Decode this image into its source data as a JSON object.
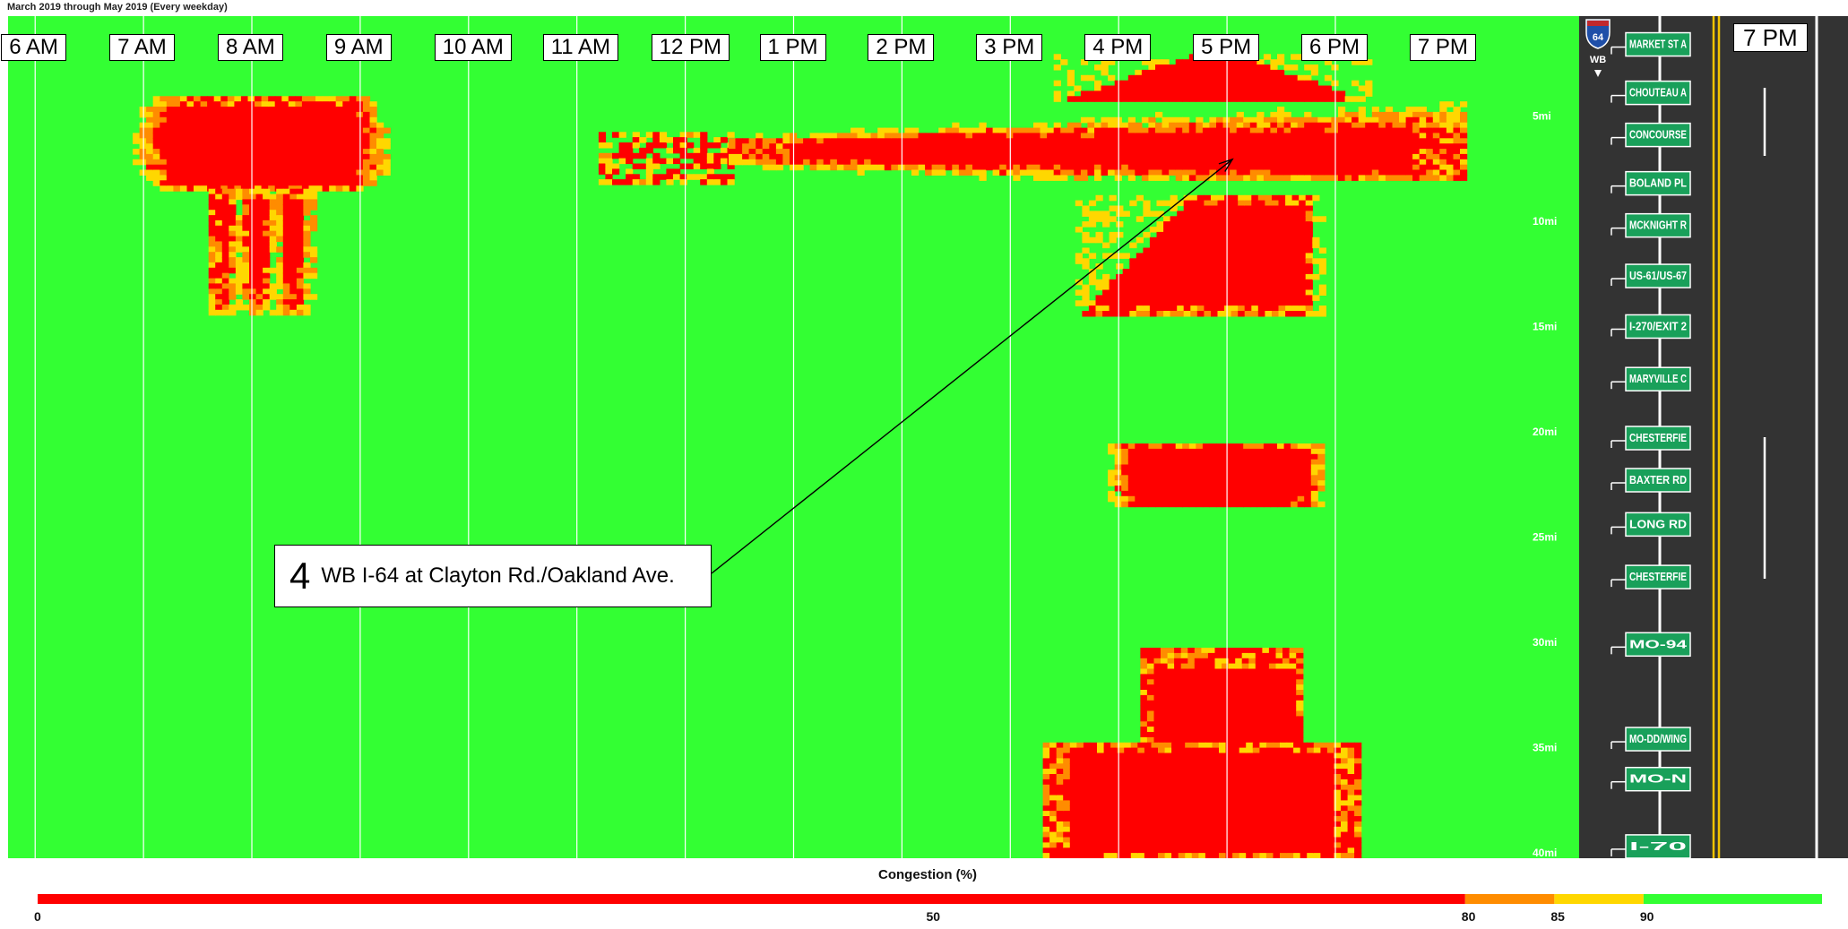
{
  "header": {
    "title": "March 2019 through May 2019 (Every weekday)"
  },
  "chart_data": {
    "type": "heatmap",
    "title": "March 2019 through May 2019 (Every weekday)",
    "x_axis": {
      "labels": [
        "6 AM",
        "7 AM",
        "8 AM",
        "9 AM",
        "10 AM",
        "11 AM",
        "12 PM",
        "1 PM",
        "2 PM",
        "3 PM",
        "4 PM",
        "5 PM",
        "6 PM",
        "7 PM"
      ],
      "range_hours": [
        5.75,
        20.25
      ]
    },
    "y_axis": {
      "tick_labels": [
        "5mi",
        "10mi",
        "15mi",
        "20mi",
        "25mi",
        "30mi",
        "35mi",
        "40mi"
      ],
      "tick_values": [
        5,
        10,
        15,
        20,
        25,
        30,
        35,
        40
      ],
      "range_mi": [
        0,
        40
      ]
    },
    "color_scale": {
      "title": "Congestion (%)",
      "tick_labels": [
        "0",
        "50",
        "80",
        "85",
        "90"
      ],
      "bands": [
        {
          "from": 0,
          "to": 80,
          "color": "#ff0000"
        },
        {
          "from": 80,
          "to": 85,
          "color": "#ff8c00"
        },
        {
          "from": 85,
          "to": 90,
          "color": "#ffd700"
        },
        {
          "from": 90,
          "to": 100,
          "color": "#33ff33"
        }
      ]
    },
    "congestion_regions": [
      {
        "t0": 6.9,
        "t1": 9.25,
        "m0": 3.8,
        "m1": 8.2,
        "pattern": "blob"
      },
      {
        "t0": 7.6,
        "t1": 8.55,
        "m0": 8.2,
        "m1": 14.0,
        "pattern": "fingers"
      },
      {
        "t0": 11.2,
        "t1": 12.4,
        "m0": 5.5,
        "m1": 7.8,
        "pattern": "speckle"
      },
      {
        "t0": 12.4,
        "t1": 19.2,
        "m0": 3.8,
        "m1": 7.8,
        "pattern": "tail"
      },
      {
        "t0": 15.4,
        "t1": 18.3,
        "m0": 1.8,
        "m1": 4.0,
        "pattern": "cap"
      },
      {
        "t0": 15.6,
        "t1": 17.9,
        "m0": 8.5,
        "m1": 14.2,
        "pattern": "slab"
      },
      {
        "t0": 15.9,
        "t1": 17.9,
        "m0": 20.3,
        "m1": 23.3,
        "pattern": "lens"
      },
      {
        "t0": 16.2,
        "t1": 17.7,
        "m0": 30.0,
        "m1": 40.0,
        "pattern": "trunk"
      },
      {
        "t0": 15.3,
        "t1": 18.2,
        "m0": 34.5,
        "m1": 40.0,
        "pattern": "base"
      }
    ],
    "annotation": {
      "number": "4",
      "text": "WB I-64 at Clayton Rd./Oakland Ave."
    }
  },
  "sidebar": {
    "route_shield": "64",
    "direction": "WB",
    "time_label": "7 PM",
    "colors": {
      "road": "#333333",
      "centerline": "#f2c300",
      "sign": "#19a05a"
    },
    "exits": [
      {
        "label": "MARKET ST A",
        "mi": 1.3
      },
      {
        "label": "CHOUTEAU A",
        "mi": 3.6
      },
      {
        "label": "CONCOURSE",
        "mi": 5.6
      },
      {
        "label": "BOLAND PL",
        "mi": 7.9
      },
      {
        "label": "MCKNIGHT R",
        "mi": 9.9
      },
      {
        "label": "US-61/US-67",
        "mi": 12.3
      },
      {
        "label": "I-270/EXIT 2",
        "mi": 14.7
      },
      {
        "label": "MARYVILLE C",
        "mi": 17.2
      },
      {
        "label": "CHESTERFIE",
        "mi": 20.0
      },
      {
        "label": "BAXTER RD",
        "mi": 22.0
      },
      {
        "label": "LONG RD",
        "mi": 24.1
      },
      {
        "label": "CHESTERFIE",
        "mi": 26.6
      },
      {
        "label": "MO-94",
        "mi": 29.8
      },
      {
        "label": "MO-DD/WING",
        "mi": 34.3
      },
      {
        "label": "MO-N",
        "mi": 36.2
      },
      {
        "label": "I-70",
        "mi": 39.4
      }
    ]
  }
}
